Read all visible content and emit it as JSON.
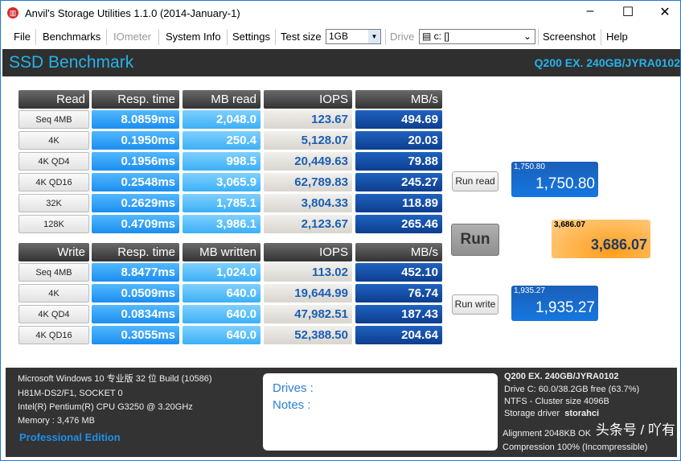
{
  "window": {
    "title": "Anvil's Storage Utilities 1.1.0 (2014-January-1)"
  },
  "menu": {
    "file": "File",
    "benchmarks": "Benchmarks",
    "iometer": "IOmeter",
    "system_info": "System Info",
    "settings": "Settings",
    "test_size_label": "Test size",
    "test_size_value": "1GB",
    "drive_label": "Drive",
    "drive_value": "c: []",
    "screenshot": "Screenshot",
    "help": "Help"
  },
  "banner": {
    "title": "SSD Benchmark",
    "model": "Q200 EX. 240GB/JYRA0102"
  },
  "read": {
    "headers": [
      "Read",
      "Resp. time",
      "MB read",
      "IOPS",
      "MB/s"
    ],
    "rows": [
      [
        "Seq 4MB",
        "8.0859ms",
        "2,048.0",
        "123.67",
        "494.69"
      ],
      [
        "4K",
        "0.1950ms",
        "250.4",
        "5,128.07",
        "20.03"
      ],
      [
        "4K QD4",
        "0.1956ms",
        "998.5",
        "20,449.63",
        "79.88"
      ],
      [
        "4K QD16",
        "0.2548ms",
        "3,065.9",
        "62,789.83",
        "245.27"
      ],
      [
        "32K",
        "0.2629ms",
        "1,785.1",
        "3,804.33",
        "118.89"
      ],
      [
        "128K",
        "0.4709ms",
        "3,986.1",
        "2,123.67",
        "265.46"
      ]
    ]
  },
  "write": {
    "headers": [
      "Write",
      "Resp. time",
      "MB written",
      "IOPS",
      "MB/s"
    ],
    "rows": [
      [
        "Seq 4MB",
        "8.8477ms",
        "1,024.0",
        "113.02",
        "452.10"
      ],
      [
        "4K",
        "0.0509ms",
        "640.0",
        "19,644.99",
        "76.74"
      ],
      [
        "4K QD4",
        "0.0834ms",
        "640.0",
        "47,982.51",
        "187.43"
      ],
      [
        "4K QD16",
        "0.3055ms",
        "640.0",
        "52,388.50",
        "204.64"
      ]
    ]
  },
  "buttons": {
    "run_read": "Run read",
    "run": "Run",
    "run_write": "Run write"
  },
  "scores": {
    "read_small": "1,750.80",
    "read": "1,750.80",
    "total_small": "3,686.07",
    "total": "3,686.07",
    "write_small": "1,935.27",
    "write": "1,935.27"
  },
  "footer": {
    "os": "Microsoft Windows 10 专业版 32 位 Build (10586)",
    "board": "H81M-DS2/F1, SOCKET 0",
    "cpu": "Intel(R) Pentium(R) CPU G3250 @ 3.20GHz",
    "memory": "Memory : 3,476 MB",
    "edition": "Professional Edition",
    "drives": "Drives :",
    "notes": "Notes :",
    "model": "Q200 EX. 240GB/JYRA0102",
    "drive": "Drive C: 60.0/38.2GB free (63.7%)",
    "fs": "NTFS - Cluster size 4096B",
    "driver_label": "Storage driver",
    "driver": "storahci",
    "alignment": "Alignment 2048KB OK",
    "compression": "Compression 100% (Incompressible)",
    "watermark": "头条号 / 吖有"
  }
}
